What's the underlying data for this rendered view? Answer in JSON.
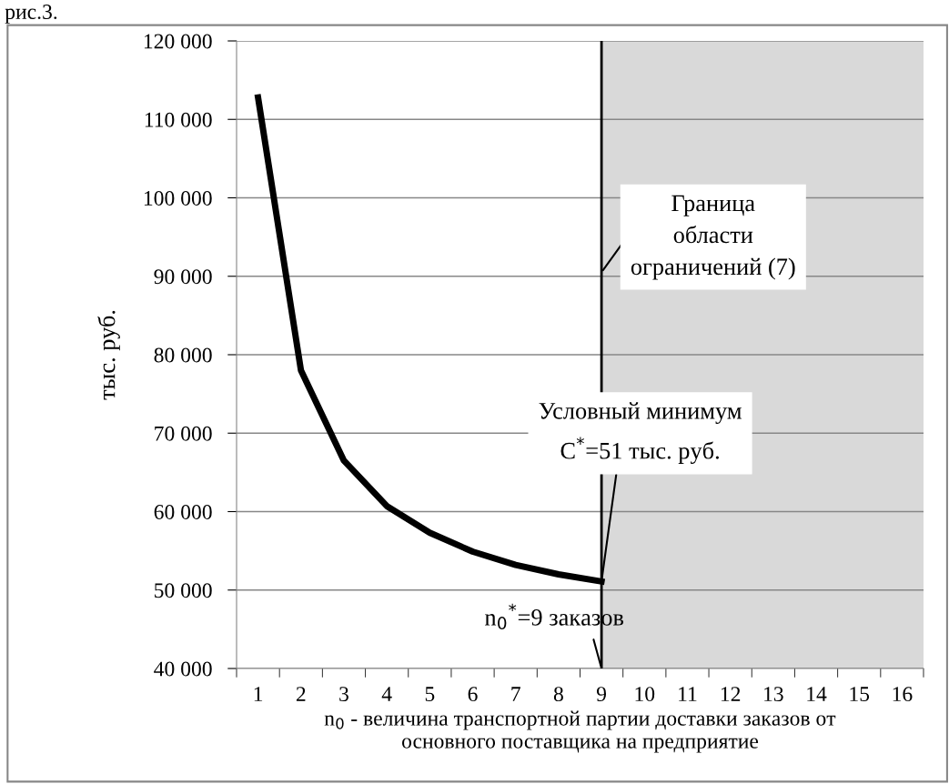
{
  "chart_data": {
    "type": "line",
    "categories": [
      "1",
      "2",
      "3",
      "4",
      "5",
      "6",
      "7",
      "8",
      "9",
      "10",
      "11",
      "12",
      "13",
      "14",
      "15",
      "16"
    ],
    "values": [
      112800,
      78000,
      66500,
      60700,
      57300,
      54900,
      53200,
      52000,
      51100,
      null,
      null,
      null,
      null,
      null,
      null,
      null
    ],
    "color": "#000000",
    "xlabel": "n$_{0}$ - величина транспортной партии доставки заказов от\nосновного поставщика на предприятие",
    "ylabel": "тыс. руб.",
    "ylim": [
      40000,
      120000
    ],
    "yticks": [
      {
        "value": 40000,
        "label": "40 000"
      },
      {
        "value": 50000,
        "label": "50 000"
      },
      {
        "value": 60000,
        "label": "60 000"
      },
      {
        "value": 70000,
        "label": "70 000"
      },
      {
        "value": 80000,
        "label": "80 000"
      },
      {
        "value": 90000,
        "label": "90 000"
      },
      {
        "value": 100000,
        "label": "100 000"
      },
      {
        "value": 110000,
        "label": "110 000"
      },
      {
        "value": 120000,
        "label": "120 000"
      }
    ],
    "grid": "y",
    "marker": "none",
    "line_style": "solid",
    "ref_lines": [
      {
        "axis": "x",
        "value": "9",
        "color": "#000000"
      }
    ],
    "bands": [
      {
        "axis": "x",
        "from": "9",
        "to": "16",
        "color": "#d9d9d9"
      }
    ],
    "annotations": [
      "рис.3.",
      {
        "text": "Граница\nобласти\nограничений (7)",
        "x": "9",
        "y": 90500
      },
      {
        "text": "Условный минимум\nC$^{*}$=51 тыс. руб.",
        "x": "9",
        "y": 51100
      },
      {
        "text": "n$_{0}$$^{*}$=9 заказов",
        "x": "9",
        "y": 40000
      }
    ]
  }
}
